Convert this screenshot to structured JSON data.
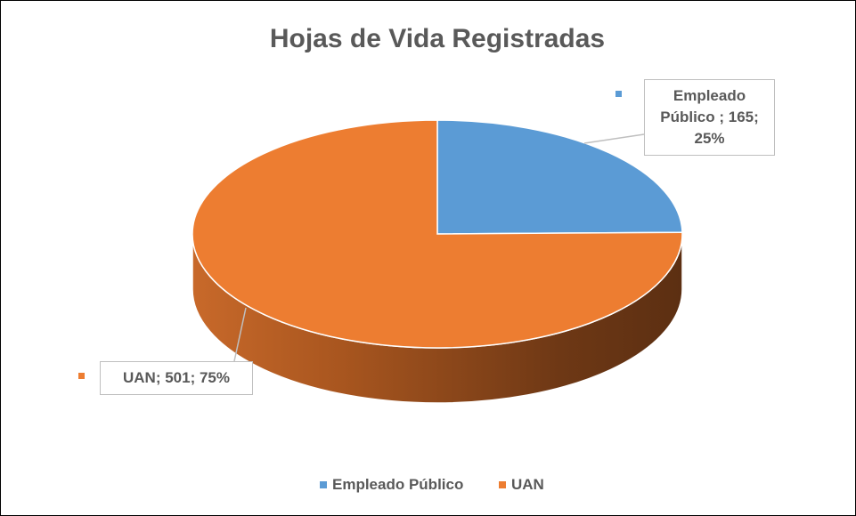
{
  "chart_data": {
    "type": "pie3d",
    "title": "Hojas de Vida Registradas",
    "categories": [
      "Empleado Público",
      "UAN"
    ],
    "values": [
      165,
      501
    ],
    "value_labels": [
      "Empleado Público ; 165; 25%",
      "UAN; 501; 75%"
    ],
    "colors": [
      "#5b9bd5",
      "#ed7d31"
    ],
    "legend": "bottom"
  }
}
